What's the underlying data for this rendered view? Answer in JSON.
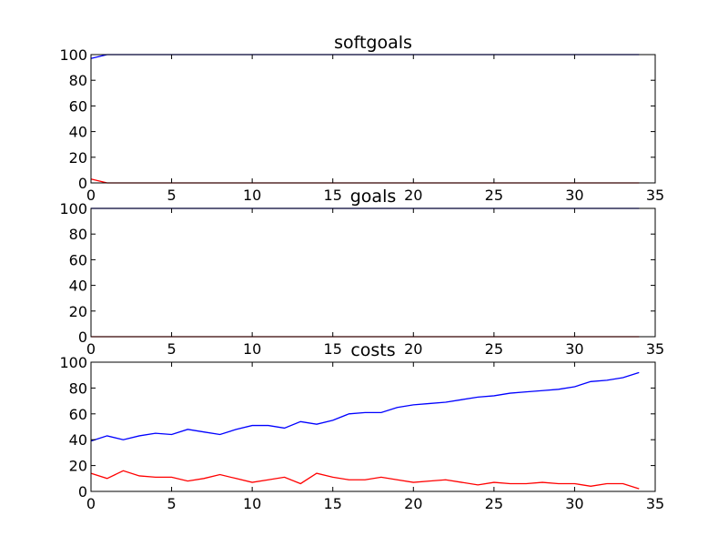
{
  "chart_data": [
    {
      "type": "line",
      "title": "softgoals",
      "xlim": [
        0,
        35
      ],
      "ylim": [
        0,
        100
      ],
      "xticks": [
        0,
        5,
        10,
        15,
        20,
        25,
        30,
        35
      ],
      "yticks": [
        0,
        20,
        40,
        60,
        80,
        100
      ],
      "grid": false,
      "series": [
        {
          "color": "#0000ff",
          "x": [
            0,
            1,
            2,
            3,
            4,
            5,
            6,
            7,
            8,
            9,
            10,
            11,
            12,
            13,
            14,
            15,
            16,
            17,
            18,
            19,
            20,
            21,
            22,
            23,
            24,
            25,
            26,
            27,
            28,
            29,
            30,
            31,
            32,
            33,
            34
          ],
          "values": [
            97,
            100,
            100,
            100,
            100,
            100,
            100,
            100,
            100,
            100,
            100,
            100,
            100,
            100,
            100,
            100,
            100,
            100,
            100,
            100,
            100,
            100,
            100,
            100,
            100,
            100,
            100,
            100,
            100,
            100,
            100,
            100,
            100,
            100,
            100
          ]
        },
        {
          "color": "#ff0000",
          "x": [
            0,
            1,
            2,
            3,
            4,
            5,
            6,
            7,
            8,
            9,
            10,
            11,
            12,
            13,
            14,
            15,
            16,
            17,
            18,
            19,
            20,
            21,
            22,
            23,
            24,
            25,
            26,
            27,
            28,
            29,
            30,
            31,
            32,
            33,
            34
          ],
          "values": [
            3,
            0,
            0,
            0,
            0,
            0,
            0,
            0,
            0,
            0,
            0,
            0,
            0,
            0,
            0,
            0,
            0,
            0,
            0,
            0,
            0,
            0,
            0,
            0,
            0,
            0,
            0,
            0,
            0,
            0,
            0,
            0,
            0,
            0,
            0
          ]
        }
      ]
    },
    {
      "type": "line",
      "title": "goals",
      "xlim": [
        0,
        35
      ],
      "ylim": [
        0,
        100
      ],
      "xticks": [
        0,
        5,
        10,
        15,
        20,
        25,
        30,
        35
      ],
      "yticks": [
        0,
        20,
        40,
        60,
        80,
        100
      ],
      "grid": false,
      "series": [
        {
          "color": "#0000ff",
          "x": [
            0,
            1,
            2,
            3,
            4,
            5,
            6,
            7,
            8,
            9,
            10,
            11,
            12,
            13,
            14,
            15,
            16,
            17,
            18,
            19,
            20,
            21,
            22,
            23,
            24,
            25,
            26,
            27,
            28,
            29,
            30,
            31,
            32,
            33,
            34
          ],
          "values": [
            100,
            100,
            100,
            100,
            100,
            100,
            100,
            100,
            100,
            100,
            100,
            100,
            100,
            100,
            100,
            100,
            100,
            100,
            100,
            100,
            100,
            100,
            100,
            100,
            100,
            100,
            100,
            100,
            100,
            100,
            100,
            100,
            100,
            100,
            100
          ]
        },
        {
          "color": "#ff0000",
          "x": [
            0,
            1,
            2,
            3,
            4,
            5,
            6,
            7,
            8,
            9,
            10,
            11,
            12,
            13,
            14,
            15,
            16,
            17,
            18,
            19,
            20,
            21,
            22,
            23,
            24,
            25,
            26,
            27,
            28,
            29,
            30,
            31,
            32,
            33,
            34
          ],
          "values": [
            0,
            0,
            0,
            0,
            0,
            0,
            0,
            0,
            0,
            0,
            0,
            0,
            0,
            0,
            0,
            0,
            0,
            0,
            0,
            0,
            0,
            0,
            0,
            0,
            0,
            0,
            0,
            0,
            0,
            0,
            0,
            0,
            0,
            0,
            0
          ]
        }
      ]
    },
    {
      "type": "line",
      "title": "costs",
      "xlim": [
        0,
        35
      ],
      "ylim": [
        0,
        100
      ],
      "xticks": [
        0,
        5,
        10,
        15,
        20,
        25,
        30,
        35
      ],
      "yticks": [
        0,
        20,
        40,
        60,
        80,
        100
      ],
      "grid": false,
      "series": [
        {
          "color": "#0000ff",
          "x": [
            0,
            1,
            2,
            3,
            4,
            5,
            6,
            7,
            8,
            9,
            10,
            11,
            12,
            13,
            14,
            15,
            16,
            17,
            18,
            19,
            20,
            21,
            22,
            23,
            24,
            25,
            26,
            27,
            28,
            29,
            30,
            31,
            32,
            33,
            34
          ],
          "values": [
            39,
            43,
            40,
            43,
            45,
            44,
            48,
            46,
            44,
            48,
            51,
            51,
            49,
            54,
            52,
            55,
            60,
            61,
            61,
            65,
            67,
            68,
            69,
            71,
            73,
            74,
            76,
            77,
            78,
            79,
            81,
            85,
            86,
            88,
            92
          ]
        },
        {
          "color": "#ff0000",
          "x": [
            0,
            1,
            2,
            3,
            4,
            5,
            6,
            7,
            8,
            9,
            10,
            11,
            12,
            13,
            14,
            15,
            16,
            17,
            18,
            19,
            20,
            21,
            22,
            23,
            24,
            25,
            26,
            27,
            28,
            29,
            30,
            31,
            32,
            33,
            34
          ],
          "values": [
            14,
            10,
            16,
            12,
            11,
            11,
            8,
            10,
            13,
            10,
            7,
            9,
            11,
            6,
            14,
            11,
            9,
            9,
            11,
            9,
            7,
            8,
            9,
            7,
            5,
            7,
            6,
            6,
            7,
            6,
            6,
            4,
            6,
            6,
            2
          ]
        }
      ]
    }
  ]
}
